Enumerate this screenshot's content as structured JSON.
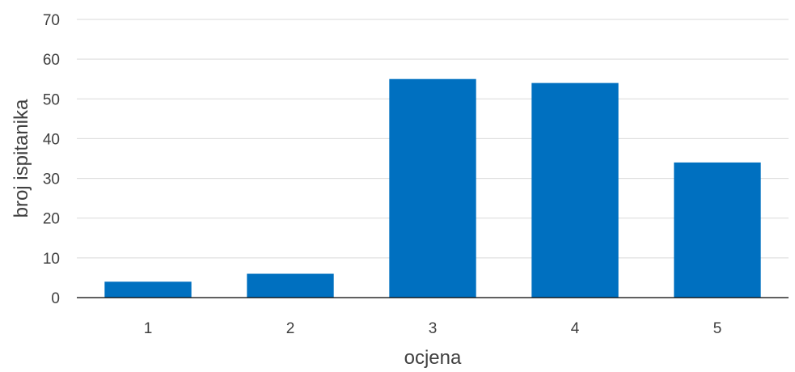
{
  "chart_data": {
    "type": "bar",
    "categories": [
      "1",
      "2",
      "3",
      "4",
      "5"
    ],
    "values": [
      4,
      6,
      55,
      54,
      34
    ],
    "xlabel": "ocjena",
    "ylabel": "broj ispitanika",
    "ylim": [
      0,
      70
    ],
    "yticks": [
      "0",
      "10",
      "20",
      "30",
      "40",
      "50",
      "60",
      "70"
    ],
    "grid": true,
    "legend": "none",
    "bar_color": "#0070c0"
  }
}
